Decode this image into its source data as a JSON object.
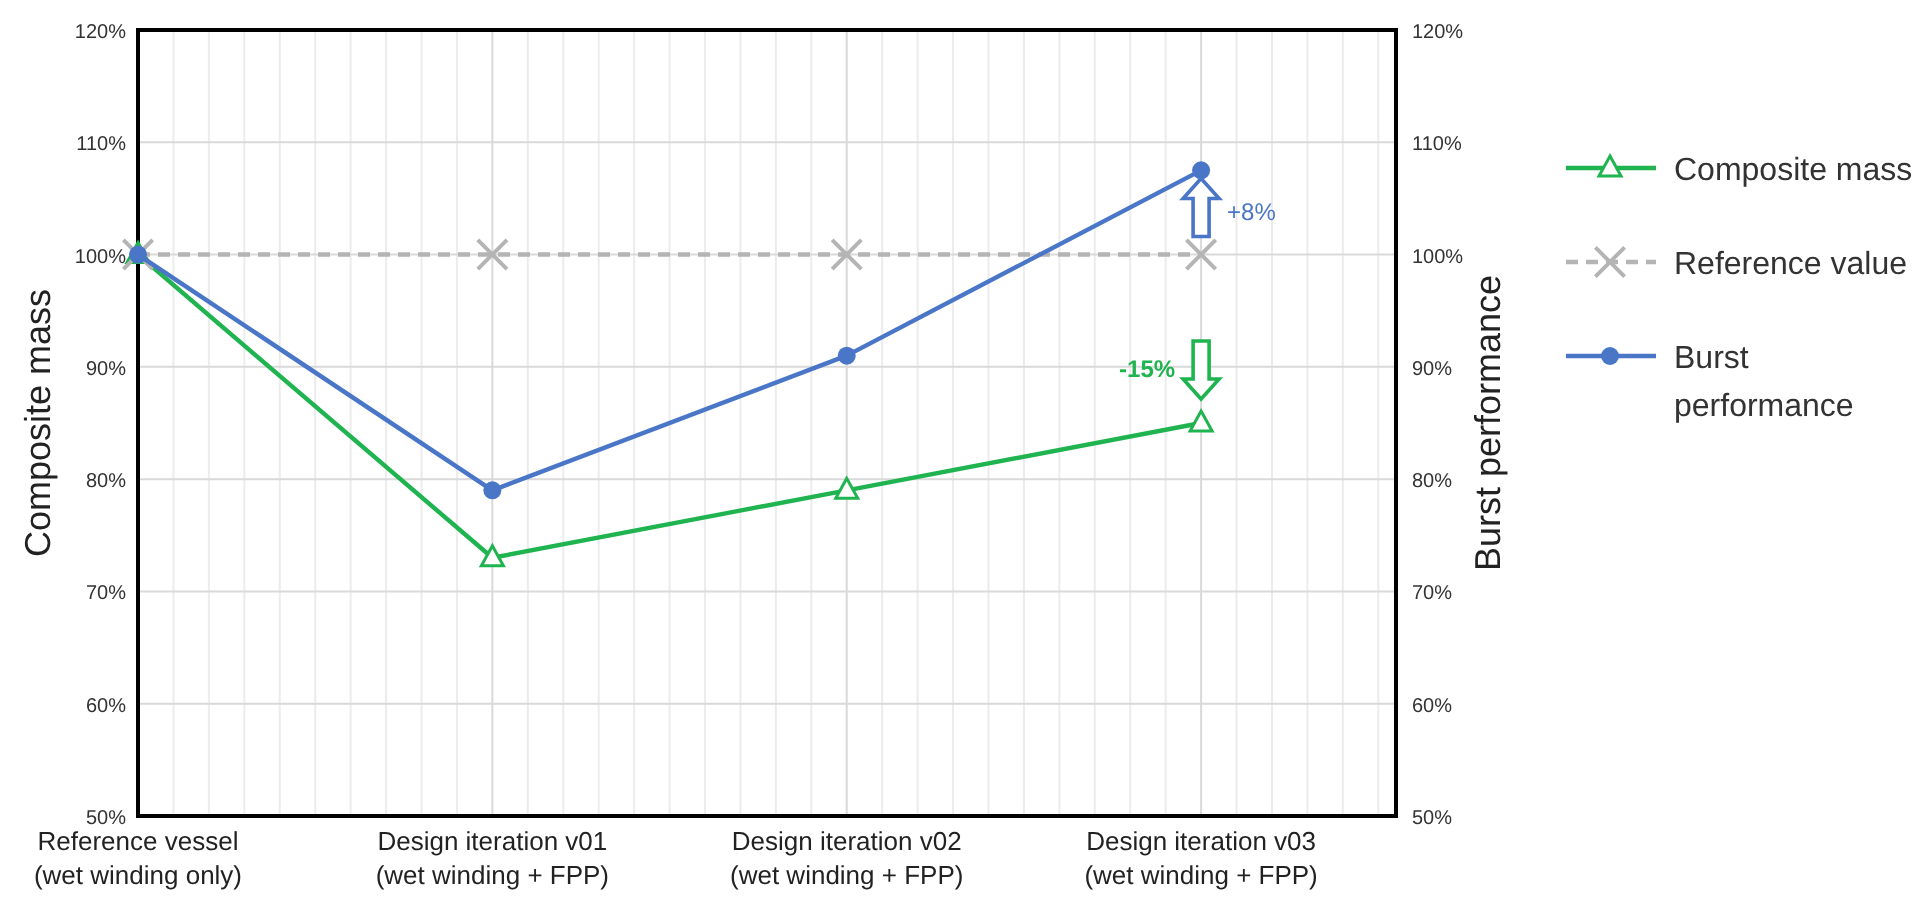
{
  "chart_data": {
    "type": "line",
    "ylabel": "Composite mass",
    "y2label": "Burst performance",
    "categories": [
      "Reference vessel\n(wet winding only)",
      "Design iteration v01\n(wet winding + FPP)",
      "Design iteration v02\n(wet winding + FPP)",
      "Design iteration v03\n(wet winding + FPP)"
    ],
    "series": [
      {
        "name": "Composite mass",
        "color": "#1fb450",
        "values": [
          100,
          73,
          79,
          85
        ],
        "marker": "triangle",
        "line_style": "solid"
      },
      {
        "name": "Reference value",
        "color": "#b4b4b4",
        "values": [
          100,
          100,
          100,
          100
        ],
        "marker": "cross",
        "line_style": "dashed"
      },
      {
        "name": "Burst performance",
        "color": "#4a76c8",
        "values": [
          100,
          79,
          91,
          107.5
        ],
        "marker": "circle",
        "line_style": "solid",
        "axis": "y2"
      }
    ],
    "ylim": [
      50,
      120
    ],
    "yticks": [
      {
        "value": 50,
        "label": "50%"
      },
      {
        "value": 60,
        "label": "60%"
      },
      {
        "value": 70,
        "label": "70%"
      },
      {
        "value": 80,
        "label": "80%"
      },
      {
        "value": 90,
        "label": "90%"
      },
      {
        "value": 100,
        "label": "100%"
      },
      {
        "value": 110,
        "label": "110%"
      },
      {
        "value": 120,
        "label": "120%"
      }
    ],
    "y2lim": [
      50,
      120
    ],
    "y2ticks": [
      {
        "value": 50,
        "label": "50%"
      },
      {
        "value": 60,
        "label": "60%"
      },
      {
        "value": 70,
        "label": "70%"
      },
      {
        "value": 80,
        "label": "80%"
      },
      {
        "value": 90,
        "label": "90%"
      },
      {
        "value": 100,
        "label": "100%"
      },
      {
        "value": 110,
        "label": "110%"
      },
      {
        "value": 120,
        "label": "120%"
      }
    ],
    "annotations": [
      "+8%",
      "-15%"
    ],
    "grid": true,
    "legend": "right"
  }
}
